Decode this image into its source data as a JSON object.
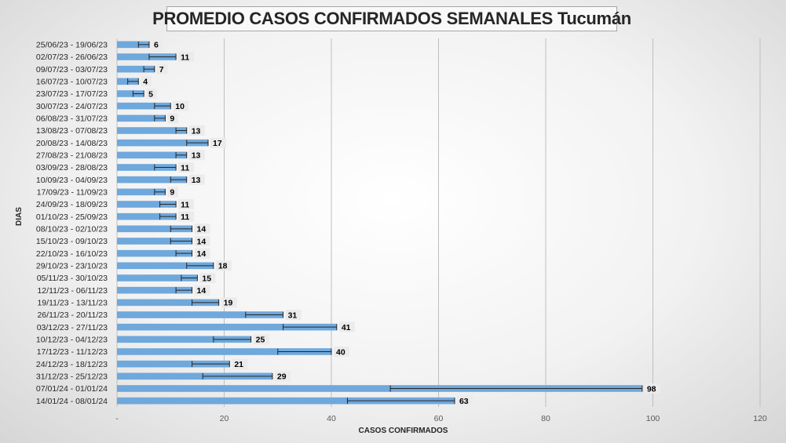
{
  "chart_data": {
    "type": "bar",
    "orientation": "horizontal",
    "title": "PROMEDIO CASOS CONFIRMADOS SEMANALES Tucumán",
    "xlabel": "CASOS CONFIRMADOS",
    "ylabel": "DIAS",
    "xlim": [
      0,
      120
    ],
    "xticks": [
      0,
      20,
      40,
      60,
      80,
      100,
      120
    ],
    "xtick_labels": [
      "-",
      "20",
      "40",
      "60",
      "80",
      "100",
      "120"
    ],
    "grid": "vertical",
    "bar_color": "#6fa8dc",
    "error_bars": true,
    "categories": [
      "25/06/23 - 19/06/23",
      "02/07/23 - 26/06/23",
      "09/07/23 - 03/07/23",
      "16/07/23 - 10/07/23",
      "23/07/23 - 17/07/23",
      "30/07/23 - 24/07/23",
      "06/08/23 - 31/07/23",
      "13/08/23 - 07/08/23",
      "20/08/23 - 14/08/23",
      "27/08/23 - 21/08/23",
      "03/09/23 - 28/08/23",
      "10/09/23 - 04/09/23",
      "17/09/23 - 11/09/23",
      "24/09/23 - 18/09/23",
      "01/10/23 - 25/09/23",
      "08/10/23 - 02/10/23",
      "15/10/23 - 09/10/23",
      "22/10/23 - 16/10/23",
      "29/10/23 - 23/10/23",
      "05/11/23 - 30/10/23",
      "12/11/23 - 06/11/23",
      "19/11/23 - 13/11/23",
      "26/11/23 - 20/11/23",
      "03/12/23 - 27/11/23",
      "10/12/23 - 04/12/23",
      "17/12/23 - 11/12/23",
      "24/12/23 - 18/12/23",
      "31/12/23 - 25/12/23",
      "07/01/24 - 01/01/24",
      "14/01/24 - 08/01/24"
    ],
    "values": [
      6,
      11,
      7,
      4,
      5,
      10,
      9,
      13,
      17,
      13,
      11,
      13,
      9,
      11,
      11,
      14,
      14,
      14,
      18,
      15,
      14,
      19,
      31,
      41,
      25,
      40,
      21,
      29,
      98,
      63
    ],
    "error_low": [
      4,
      6,
      5,
      2,
      3,
      7,
      7,
      11,
      13,
      11,
      7,
      10,
      7,
      8,
      8,
      10,
      10,
      11,
      13,
      12,
      11,
      14,
      24,
      31,
      18,
      30,
      14,
      16,
      51,
      43
    ],
    "error_high": [
      6,
      11,
      7,
      4,
      5,
      10,
      9,
      13,
      17,
      13,
      11,
      13,
      9,
      11,
      11,
      14,
      14,
      14,
      18,
      15,
      14,
      19,
      31,
      41,
      25,
      40,
      21,
      29,
      98,
      63
    ]
  }
}
